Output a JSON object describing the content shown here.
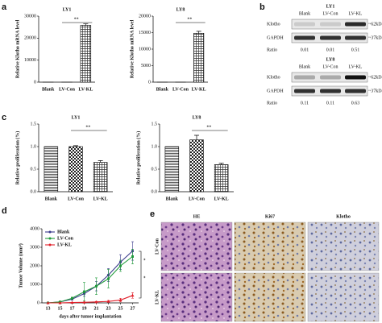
{
  "panels": [
    "a",
    "b",
    "c",
    "d",
    "e"
  ],
  "chart_data": [
    {
      "type": "bar",
      "title": "LY1",
      "ylabel": "Relative Klotho mRNA level",
      "categories": [
        "Blank",
        "LV-Con",
        "LV-KL"
      ],
      "values": [
        1,
        1,
        25800
      ],
      "errors": [
        null,
        null,
        700
      ],
      "ylim": [
        0,
        30000
      ],
      "yticks": [
        0,
        10000,
        20000,
        30000
      ],
      "annotation": "**"
    },
    {
      "type": "bar",
      "title": "LY8",
      "ylabel": "Relative Klotho mRNA level",
      "categories": [
        "Blank",
        "LV-Con",
        "LV-KL"
      ],
      "values": [
        1,
        1,
        14800
      ],
      "errors": [
        null,
        null,
        600
      ],
      "ylim": [
        0,
        20000
      ],
      "yticks": [
        0,
        5000,
        10000,
        15000,
        20000
      ],
      "annotation": "**"
    },
    {
      "type": "bar",
      "title": "LY1",
      "ylabel": "Relative proliferation (%)",
      "categories": [
        "Blank",
        "LV-Con",
        "LV-KL"
      ],
      "values": [
        1.0,
        1.0,
        0.65
      ],
      "errors": [
        null,
        0.02,
        0.04
      ],
      "ylim": [
        0,
        1.5
      ],
      "yticks": [
        {
          "value": 0,
          "label": "0.0"
        },
        0.5,
        {
          "value": 1,
          "label": "1.0"
        },
        1.5
      ],
      "annotation": "**"
    },
    {
      "type": "bar",
      "title": "LY8",
      "ylabel": "Relative proliferation (%)",
      "categories": [
        "Blank",
        "LV-Con",
        "LV-KL"
      ],
      "values": [
        1.0,
        1.15,
        0.6
      ],
      "errors": [
        null,
        0.1,
        0.03
      ],
      "ylim": [
        0,
        1.5
      ],
      "yticks": [
        {
          "value": 0,
          "label": "0.0"
        },
        0.5,
        {
          "value": 1,
          "label": "1.0"
        },
        1.5
      ],
      "annotation": "**"
    },
    {
      "type": "line",
      "ylabel": "Tumor Volume (mm³)",
      "xlabel": "days after tumor implantation",
      "x": [
        13,
        15,
        17,
        19,
        21,
        23,
        25,
        27
      ],
      "xlim": [
        12,
        28
      ],
      "xticks": [
        13,
        15,
        17,
        19,
        21,
        23,
        25,
        27
      ],
      "ylim": [
        0,
        4000
      ],
      "yticks": [
        0,
        1000,
        2000,
        3000,
        4000
      ],
      "legend": "top-left",
      "annotations": [
        "*",
        "*"
      ],
      "series": [
        {
          "name": "Blank",
          "color": "#3a3a8c",
          "values": [
            0,
            50,
            200,
            500,
            900,
            1500,
            2200,
            2800
          ],
          "errors": [
            0,
            10,
            50,
            150,
            250,
            350,
            400,
            500
          ]
        },
        {
          "name": "LV-Con",
          "color": "#1f9a3a",
          "values": [
            0,
            50,
            250,
            600,
            900,
            1300,
            2000,
            2500
          ],
          "errors": [
            0,
            10,
            60,
            500,
            450,
            500,
            300,
            400
          ]
        },
        {
          "name": "LV-KL",
          "color": "#e0202a",
          "values": [
            0,
            0,
            20,
            30,
            50,
            80,
            150,
            400
          ],
          "errors": [
            0,
            0,
            10,
            20,
            30,
            50,
            100,
            150
          ]
        }
      ]
    }
  ],
  "blots": [
    {
      "title": "LY1",
      "lanes": [
        "Blank",
        "LV-Con",
        "LV-KL"
      ],
      "rows": [
        "Klotho",
        "GAPDH"
      ],
      "sizes": [
        "~62kDa",
        "~37kDa"
      ],
      "ratio_label": "Ratio",
      "ratios": [
        0.01,
        0.01,
        0.51
      ]
    },
    {
      "title": "LY8",
      "lanes": [
        "Blank",
        "LV-Con",
        "LV-KL"
      ],
      "rows": [
        "Klotho",
        "GAPDH"
      ],
      "sizes": [
        "~62kDa",
        "~37kDa"
      ],
      "ratio_label": "Ratio",
      "ratios": [
        0.11,
        0.11,
        0.63
      ]
    }
  ],
  "histology": {
    "columns": [
      "HE",
      "Ki67",
      "Klotho"
    ],
    "rows": [
      "LV-Con",
      "LV-KL"
    ]
  }
}
